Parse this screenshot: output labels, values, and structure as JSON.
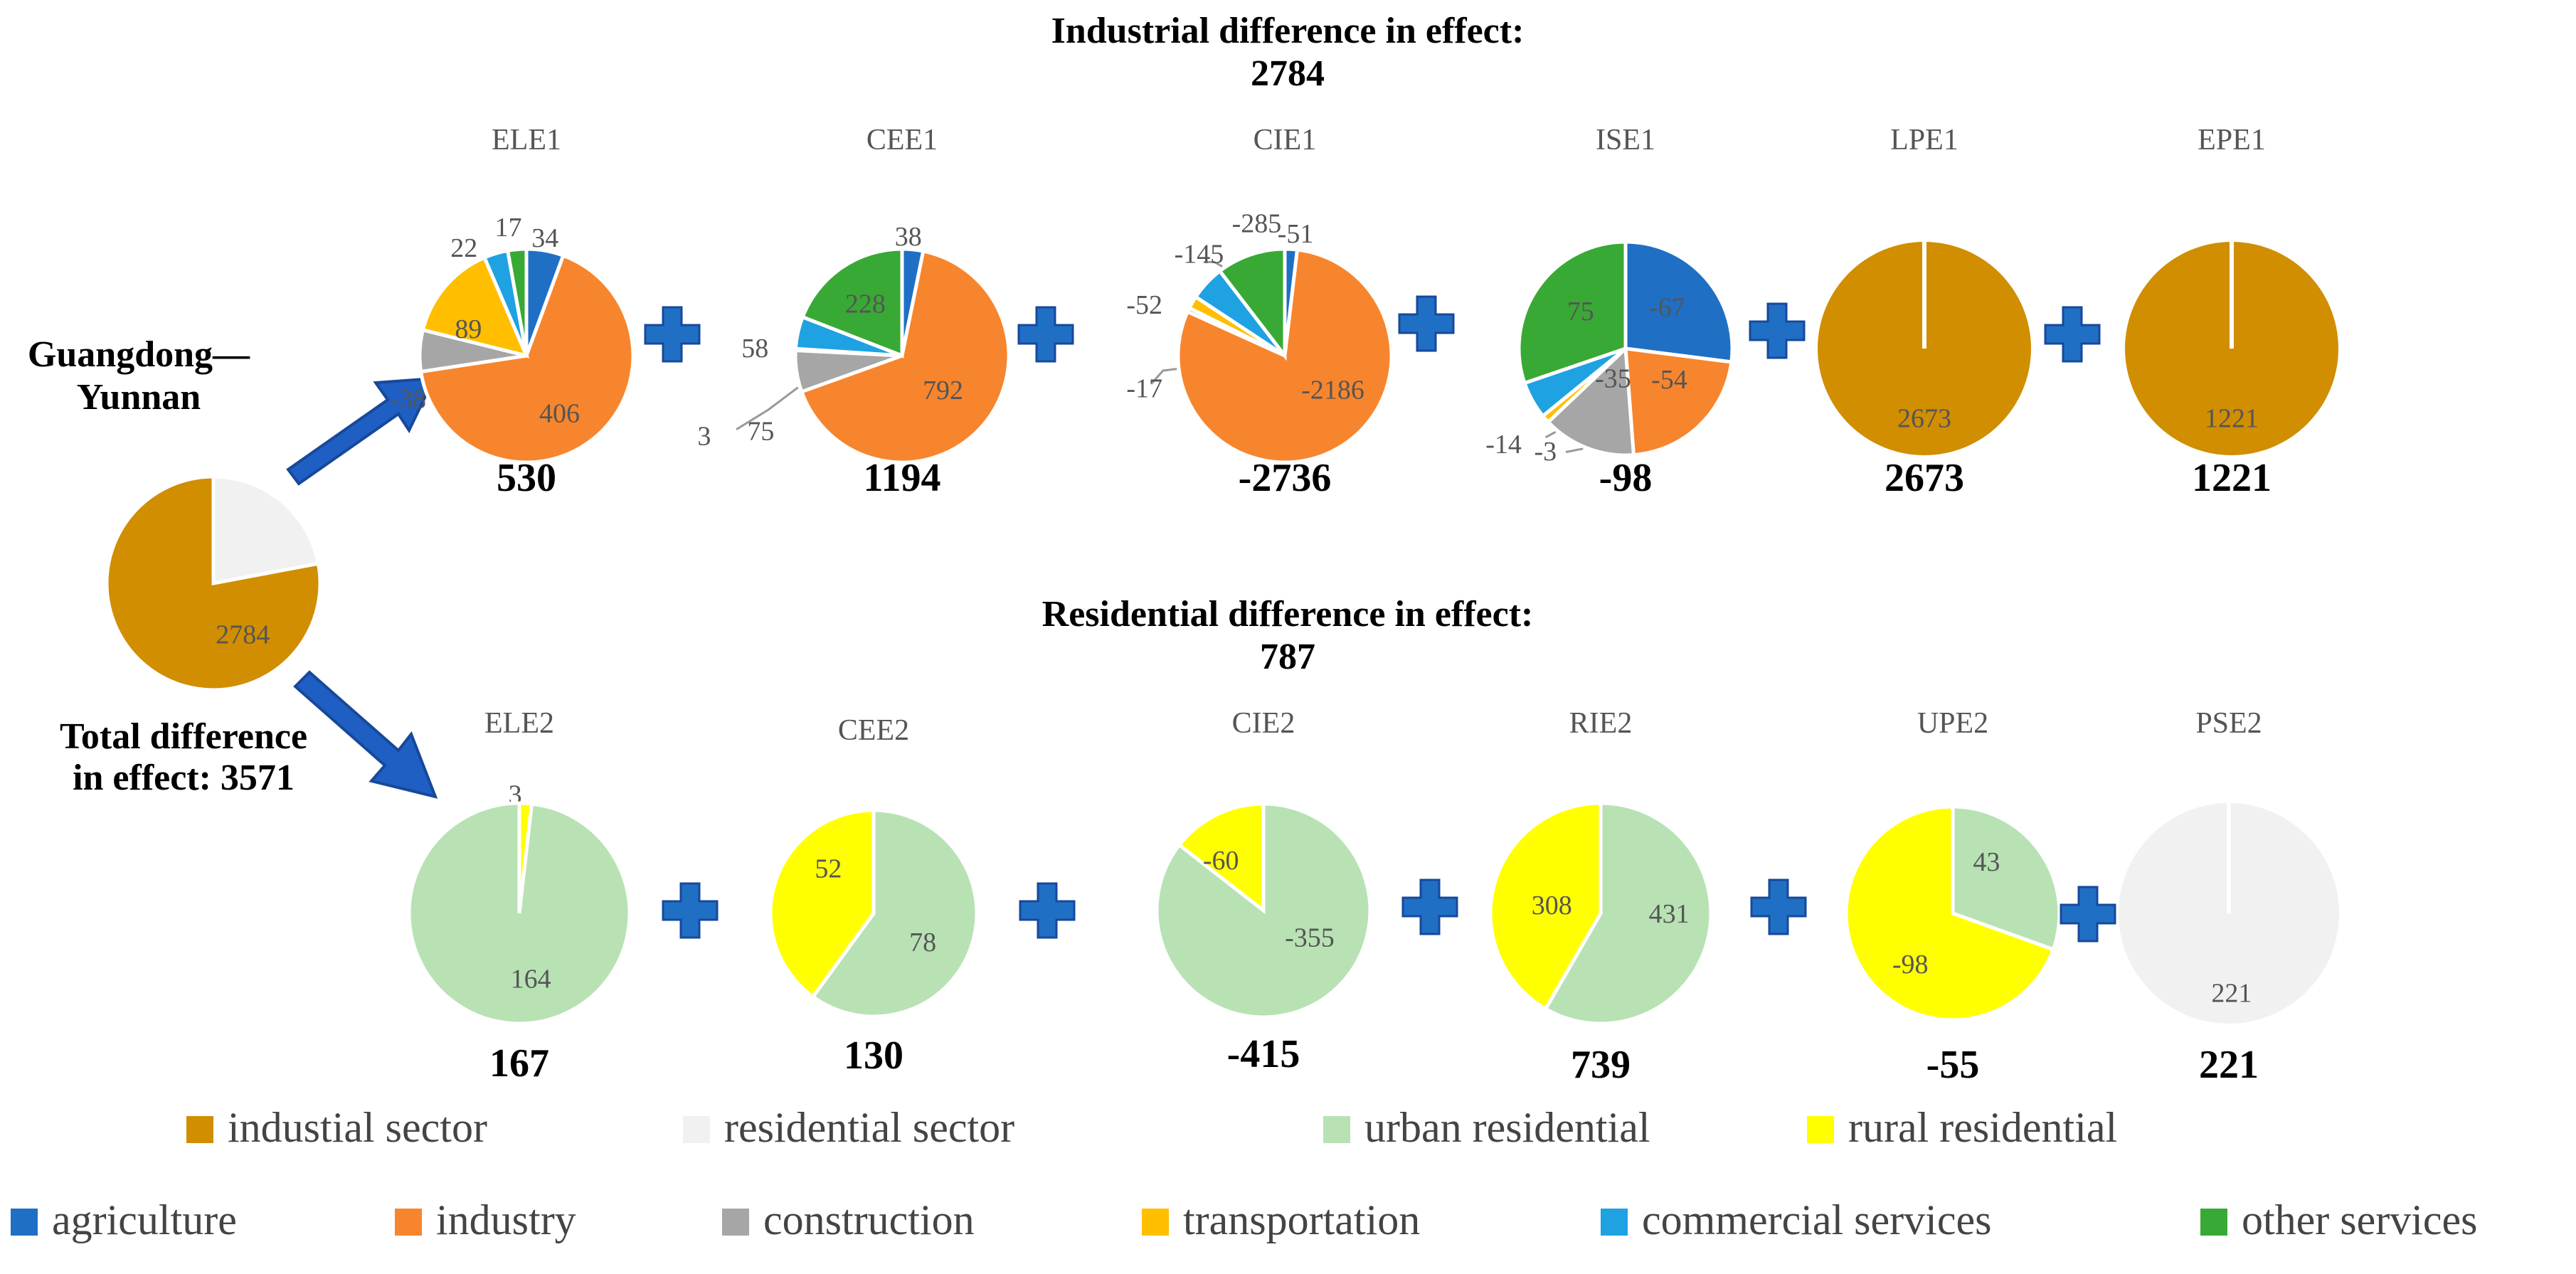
{
  "colors": {
    "industrial": "#D08E00",
    "residential": "#F1F1F1",
    "urban": "#B8E2B4",
    "rural": "#FFFF00",
    "agriculture": "#1F6FC5",
    "industry": "#F7852D",
    "construction": "#A6A6A6",
    "transportation": "#FFBF00",
    "commercial": "#1FA2E1",
    "other": "#39A935",
    "arrow": "#1F5FC4",
    "plus": "#1F6FC5"
  },
  "titles": {
    "industrial": "Industrial difference in effect:",
    "industrial_value": "2784",
    "residential": "Residential difference in effect:",
    "residential_value": "787"
  },
  "region": [
    "Guangdong—",
    "Yunnan"
  ],
  "total": [
    "Total difference",
    "in effect: 3571"
  ],
  "chart_data": [
    {
      "type": "pie",
      "id": "total",
      "title": "",
      "total": "",
      "slices": [
        {
          "label": "residential sector",
          "value": 787,
          "color": "residential"
        },
        {
          "label": "industial sector",
          "value": 2784,
          "color": "industrial"
        }
      ]
    },
    {
      "type": "pie",
      "id": "ELE1",
      "title": "ELE1",
      "total": "530",
      "slices": [
        {
          "label": "agriculture",
          "value": 34,
          "color": "agriculture"
        },
        {
          "label": "industry",
          "value": 406,
          "color": "industry"
        },
        {
          "label": "construction",
          "value": -38,
          "color": "construction"
        },
        {
          "label": "transportation",
          "value": 89,
          "color": "transportation"
        },
        {
          "label": "commercial services",
          "value": 22,
          "color": "commercial"
        },
        {
          "label": "other services",
          "value": 17,
          "color": "other"
        }
      ]
    },
    {
      "type": "pie",
      "id": "CEE1",
      "title": "CEE1",
      "total": "1194",
      "slices": [
        {
          "label": "agriculture",
          "value": 38,
          "color": "agriculture"
        },
        {
          "label": "industry",
          "value": 792,
          "color": "industry"
        },
        {
          "label": "construction",
          "value": 75,
          "color": "construction"
        },
        {
          "label": "transportation",
          "value": 3,
          "color": "transportation"
        },
        {
          "label": "commercial services",
          "value": 58,
          "color": "commercial"
        },
        {
          "label": "other services",
          "value": 228,
          "color": "other"
        }
      ]
    },
    {
      "type": "pie",
      "id": "CIE1",
      "title": "CIE1",
      "total": "-2736",
      "slices": [
        {
          "label": "agriculture",
          "value": -51,
          "color": "agriculture"
        },
        {
          "label": "industry",
          "value": -2186,
          "color": "industry"
        },
        {
          "label": "construction",
          "value": -17,
          "color": "construction"
        },
        {
          "label": "transportation",
          "value": -52,
          "color": "transportation"
        },
        {
          "label": "commercial services",
          "value": -145,
          "color": "commercial"
        },
        {
          "label": "other services",
          "value": -285,
          "color": "other"
        }
      ]
    },
    {
      "type": "pie",
      "id": "ISE1",
      "title": "ISE1",
      "total": "-98",
      "slices": [
        {
          "label": "agriculture",
          "value": -67,
          "color": "agriculture"
        },
        {
          "label": "industry",
          "value": -54,
          "color": "industry"
        },
        {
          "label": "construction",
          "value": -35,
          "color": "construction"
        },
        {
          "label": "transportation",
          "value": -3,
          "color": "transportation"
        },
        {
          "label": "commercial services",
          "value": -14,
          "color": "commercial"
        },
        {
          "label": "other services",
          "value": 75,
          "color": "other"
        }
      ]
    },
    {
      "type": "pie",
      "id": "LPE1",
      "title": "LPE1",
      "total": "2673",
      "slices": [
        {
          "label": "industial sector",
          "value": 2673,
          "color": "industrial"
        }
      ]
    },
    {
      "type": "pie",
      "id": "EPE1",
      "title": "EPE1",
      "total": "1221",
      "slices": [
        {
          "label": "industial sector",
          "value": 1221,
          "color": "industrial"
        }
      ]
    },
    {
      "type": "pie",
      "id": "ELE2",
      "title": "ELE2",
      "total": "167",
      "slices": [
        {
          "label": "rural residential",
          "value": 3,
          "color": "rural"
        },
        {
          "label": "urban residential",
          "value": 164,
          "color": "urban"
        }
      ]
    },
    {
      "type": "pie",
      "id": "CEE2",
      "title": "CEE2",
      "total": "130",
      "slices": [
        {
          "label": "urban residential",
          "value": 78,
          "color": "urban"
        },
        {
          "label": "rural residential",
          "value": 52,
          "color": "rural"
        }
      ]
    },
    {
      "type": "pie",
      "id": "CIE2",
      "title": "CIE2",
      "total": "-415",
      "slices": [
        {
          "label": "urban residential",
          "value": -355,
          "color": "urban"
        },
        {
          "label": "rural residential",
          "value": -60,
          "color": "rural"
        }
      ]
    },
    {
      "type": "pie",
      "id": "RIE2",
      "title": "RIE2",
      "total": "739",
      "slices": [
        {
          "label": "urban residential",
          "value": 431,
          "color": "urban"
        },
        {
          "label": "rural residential",
          "value": 308,
          "color": "rural"
        }
      ]
    },
    {
      "type": "pie",
      "id": "UPE2",
      "title": "UPE2",
      "total": "-55",
      "slices": [
        {
          "label": "urban residential",
          "value": 43,
          "color": "urban"
        },
        {
          "label": "rural residential",
          "value": -98,
          "color": "rural"
        }
      ]
    },
    {
      "type": "pie",
      "id": "PSE2",
      "title": "PSE2",
      "total": "221",
      "slices": [
        {
          "label": "residential sector",
          "value": 221,
          "color": "residential"
        }
      ]
    }
  ],
  "legend_rows": [
    [
      {
        "label": "industial sector",
        "color": "industrial"
      },
      {
        "label": "residential sector",
        "color": "residential"
      },
      {
        "label": "urban residential",
        "color": "urban"
      },
      {
        "label": "rural residential",
        "color": "rural"
      }
    ],
    [
      {
        "label": "agriculture",
        "color": "agriculture"
      },
      {
        "label": "industry",
        "color": "industry"
      },
      {
        "label": "construction",
        "color": "construction"
      },
      {
        "label": "transportation",
        "color": "transportation"
      },
      {
        "label": "commercial services",
        "color": "commercial"
      },
      {
        "label": "other services",
        "color": "other"
      }
    ]
  ]
}
